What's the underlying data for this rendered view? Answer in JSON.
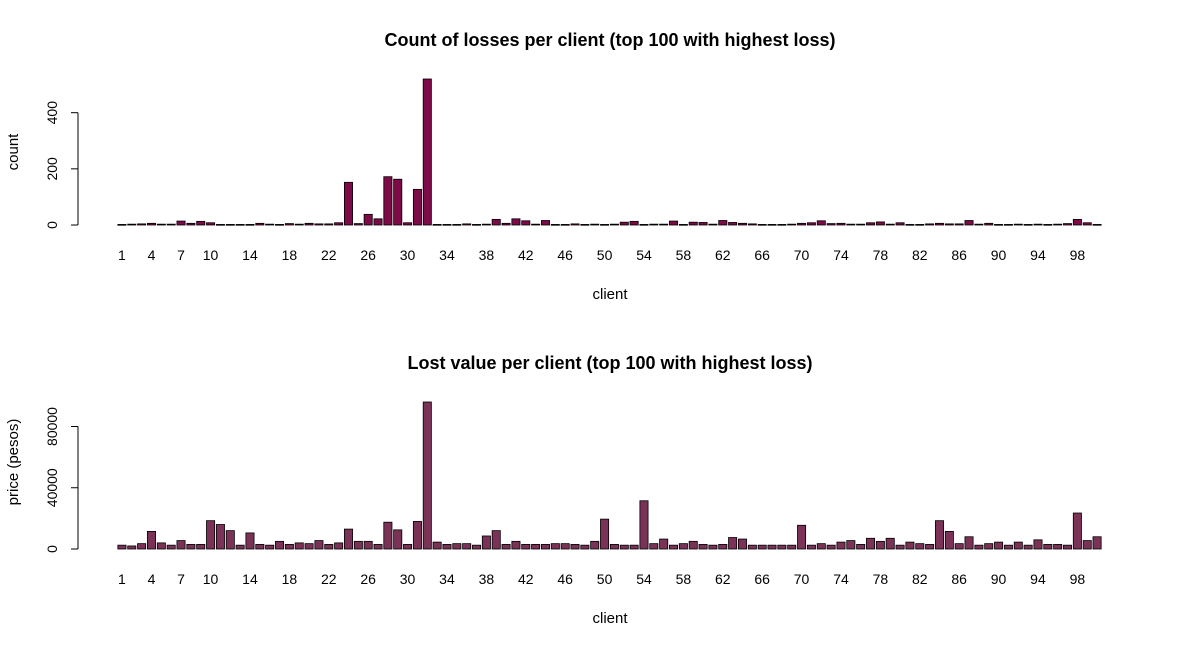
{
  "chart_data": [
    {
      "type": "bar",
      "title": "Count of losses per client (top 100 with highest loss)",
      "xlabel": "client",
      "ylabel": "count",
      "ylim": [
        0,
        520
      ],
      "yticks": [
        0,
        200,
        400
      ],
      "xtick_labels": [
        "1",
        "4",
        "7",
        "10",
        "14",
        "18",
        "22",
        "26",
        "30",
        "34",
        "38",
        "42",
        "46",
        "50",
        "54",
        "58",
        "62",
        "66",
        "70",
        "74",
        "78",
        "82",
        "86",
        "90",
        "94",
        "98"
      ],
      "categories": [
        1,
        2,
        3,
        4,
        5,
        6,
        7,
        8,
        9,
        10,
        11,
        12,
        13,
        14,
        15,
        16,
        17,
        18,
        19,
        20,
        21,
        22,
        23,
        24,
        25,
        26,
        27,
        28,
        29,
        30,
        31,
        32,
        33,
        34,
        35,
        36,
        37,
        38,
        39,
        40,
        41,
        42,
        43,
        44,
        45,
        46,
        47,
        48,
        49,
        50,
        51,
        52,
        53,
        54,
        55,
        56,
        57,
        58,
        59,
        60,
        61,
        62,
        63,
        64,
        65,
        66,
        67,
        68,
        69,
        70,
        71,
        72,
        73,
        74,
        75,
        76,
        77,
        78,
        79,
        80,
        81,
        82,
        83,
        84,
        85,
        86,
        87,
        88,
        89,
        90,
        91,
        92,
        93,
        94,
        95,
        96,
        97,
        98,
        99,
        100
      ],
      "values": [
        2,
        3,
        4,
        6,
        3,
        3,
        14,
        6,
        13,
        8,
        2,
        2,
        2,
        2,
        6,
        3,
        2,
        5,
        3,
        6,
        4,
        4,
        8,
        152,
        5,
        38,
        22,
        172,
        163,
        8,
        127,
        520,
        2,
        2,
        2,
        4,
        2,
        3,
        20,
        6,
        22,
        15,
        3,
        16,
        2,
        2,
        4,
        2,
        3,
        2,
        3,
        10,
        13,
        2,
        3,
        3,
        14,
        2,
        10,
        9,
        3,
        16,
        9,
        6,
        4,
        2,
        2,
        2,
        3,
        6,
        8,
        15,
        5,
        6,
        3,
        3,
        8,
        11,
        3,
        8,
        2,
        2,
        4,
        6,
        4,
        4,
        16,
        3,
        6,
        2,
        2,
        3,
        2,
        3,
        2,
        3,
        5,
        20,
        8,
        2
      ],
      "fill_color": "#7c0b47",
      "grid": false,
      "legend": "none"
    },
    {
      "type": "bar",
      "title": "Lost value per client (top 100 with highest loss)",
      "xlabel": "client",
      "ylabel": "price (pesos)",
      "ylim": [
        0,
        96000
      ],
      "yticks": [
        0,
        40000,
        80000
      ],
      "xtick_labels": [
        "1",
        "4",
        "7",
        "10",
        "14",
        "18",
        "22",
        "26",
        "30",
        "34",
        "38",
        "42",
        "46",
        "50",
        "54",
        "58",
        "62",
        "66",
        "70",
        "74",
        "78",
        "82",
        "86",
        "90",
        "94",
        "98"
      ],
      "categories": [
        1,
        2,
        3,
        4,
        5,
        6,
        7,
        8,
        9,
        10,
        11,
        12,
        13,
        14,
        15,
        16,
        17,
        18,
        19,
        20,
        21,
        22,
        23,
        24,
        25,
        26,
        27,
        28,
        29,
        30,
        31,
        32,
        33,
        34,
        35,
        36,
        37,
        38,
        39,
        40,
        41,
        42,
        43,
        44,
        45,
        46,
        47,
        48,
        49,
        50,
        51,
        52,
        53,
        54,
        55,
        56,
        57,
        58,
        59,
        60,
        61,
        62,
        63,
        64,
        65,
        66,
        67,
        68,
        69,
        70,
        71,
        72,
        73,
        74,
        75,
        76,
        77,
        78,
        79,
        80,
        81,
        82,
        83,
        84,
        85,
        86,
        87,
        88,
        89,
        90,
        91,
        92,
        93,
        94,
        95,
        96,
        97,
        98,
        99,
        100
      ],
      "values": [
        2500,
        2000,
        3500,
        11500,
        4000,
        2500,
        5500,
        3000,
        3000,
        18500,
        16000,
        12000,
        2500,
        10500,
        3000,
        2500,
        5000,
        3000,
        4000,
        3500,
        5500,
        3000,
        4000,
        13000,
        5000,
        5000,
        3000,
        17500,
        12500,
        3000,
        18000,
        96000,
        4500,
        3000,
        3500,
        3500,
        2500,
        8500,
        12000,
        3000,
        5000,
        3000,
        3000,
        3000,
        3500,
        3500,
        3000,
        2500,
        5000,
        19500,
        3000,
        2500,
        2500,
        31500,
        3500,
        6500,
        2500,
        3500,
        5000,
        3000,
        2500,
        3000,
        7500,
        6500,
        2500,
        2500,
        2500,
        2500,
        2500,
        15500,
        2500,
        3500,
        2500,
        4500,
        5500,
        3000,
        7000,
        5000,
        7000,
        2500,
        4500,
        3500,
        3000,
        18500,
        11500,
        3500,
        8000,
        2500,
        3500,
        4500,
        2500,
        4500,
        2500,
        6000,
        3000,
        3000,
        2500,
        23500,
        5500,
        8000
      ],
      "fill_color": "#7a3357",
      "grid": false,
      "legend": "none"
    }
  ]
}
